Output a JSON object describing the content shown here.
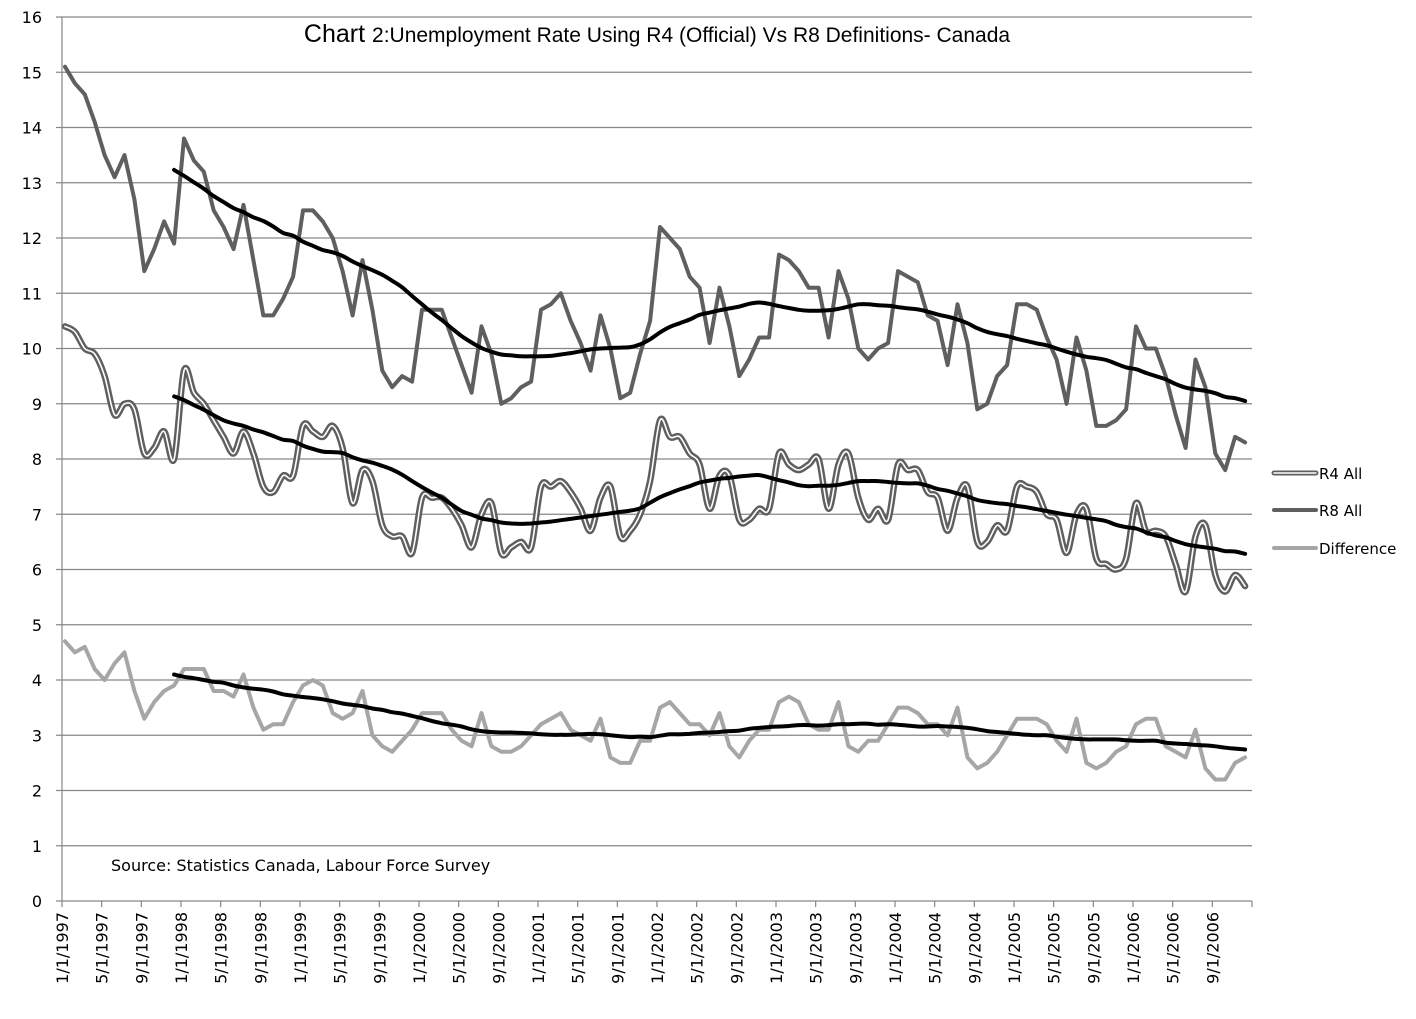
{
  "chart_data": {
    "type": "line",
    "title_prefix": "Chart ",
    "title_main": "2:Unemployment Rate Using R4 (Official) Vs R8 Definitions- Canada",
    "title": "Chart 2:Unemployment Rate Using R4 (Official) Vs R8 Definitions- Canada",
    "xlabel": "",
    "ylabel": "",
    "ylim": [
      0,
      16
    ],
    "yticks": [
      "0",
      "1",
      "2",
      "3",
      "4",
      "5",
      "6",
      "7",
      "8",
      "9",
      "10",
      "11",
      "12",
      "13",
      "14",
      "15",
      "16"
    ],
    "grid": true,
    "legend_position": "right",
    "annotation": "Source: Statistics Canada, Labour Force Survey",
    "x_tick_labels": [
      "1/1/1997",
      "5/1/1997",
      "9/1/1997",
      "1/1/1998",
      "5/1/1998",
      "9/1/1998",
      "1/1/1999",
      "5/1/1999",
      "9/1/1999",
      "1/1/2000",
      "5/1/2000",
      "9/1/2000",
      "1/1/2001",
      "5/1/2001",
      "9/1/2001",
      "1/1/2002",
      "5/1/2002",
      "9/1/2002",
      "1/1/2003",
      "5/1/2003",
      "9/1/2003",
      "1/1/2004",
      "5/1/2004",
      "9/1/2004",
      "1/1/2005",
      "5/1/2005",
      "9/1/2005",
      "1/1/2006",
      "5/1/2006",
      "9/1/2006"
    ],
    "x_start": "1/1/1997",
    "x_frequency": "monthly",
    "n_points": 120,
    "moving_average_period": 12,
    "series": [
      {
        "name": "R4 All",
        "style": "double",
        "color": "#5f5f5f",
        "values": [
          10.4,
          10.3,
          10.0,
          9.9,
          9.5,
          8.8,
          9.0,
          8.9,
          8.1,
          8.2,
          8.5,
          8.0,
          9.6,
          9.2,
          9.0,
          8.7,
          8.4,
          8.1,
          8.5,
          8.1,
          7.5,
          7.4,
          7.7,
          7.7,
          8.6,
          8.5,
          8.4,
          8.6,
          8.2,
          7.2,
          7.8,
          7.6,
          6.8,
          6.6,
          6.6,
          6.3,
          7.3,
          7.3,
          7.3,
          7.1,
          6.8,
          6.4,
          7.0,
          7.2,
          6.3,
          6.4,
          6.5,
          6.4,
          7.5,
          7.5,
          7.6,
          7.4,
          7.1,
          6.7,
          7.3,
          7.5,
          6.6,
          6.7,
          7.0,
          7.6,
          8.7,
          8.4,
          8.4,
          8.1,
          7.9,
          7.1,
          7.7,
          7.7,
          6.9,
          6.9,
          7.1,
          7.1,
          8.1,
          7.9,
          7.8,
          7.9,
          8.0,
          7.1,
          7.9,
          8.1,
          7.3,
          6.9,
          7.1,
          6.9,
          7.9,
          7.8,
          7.8,
          7.4,
          7.3,
          6.7,
          7.3,
          7.5,
          6.5,
          6.5,
          6.8,
          6.7,
          7.5,
          7.5,
          7.4,
          7.0,
          6.9,
          6.3,
          7.0,
          7.1,
          6.2,
          6.1,
          6.0,
          6.2,
          7.2,
          6.7,
          6.7,
          6.6,
          6.1,
          5.6,
          6.6,
          6.8,
          5.9,
          5.6,
          5.9,
          5.7
        ]
      },
      {
        "name": "R8 All",
        "style": "solid",
        "color": "#5f5f5f",
        "values": [
          15.1,
          14.8,
          14.6,
          14.1,
          13.5,
          13.1,
          13.5,
          12.7,
          11.4,
          11.8,
          12.3,
          11.9,
          13.8,
          13.4,
          13.2,
          12.5,
          12.2,
          11.8,
          12.6,
          11.6,
          10.6,
          10.6,
          10.9,
          11.3,
          12.5,
          12.5,
          12.3,
          12.0,
          11.4,
          10.6,
          11.6,
          10.7,
          9.6,
          9.3,
          9.5,
          9.4,
          10.7,
          10.7,
          10.7,
          10.2,
          9.7,
          9.2,
          10.4,
          9.9,
          9.0,
          9.1,
          9.3,
          9.4,
          10.7,
          10.8,
          11.0,
          10.5,
          10.1,
          9.6,
          10.6,
          10.0,
          9.1,
          9.2,
          9.9,
          10.5,
          12.2,
          12.0,
          11.8,
          11.3,
          11.1,
          10.1,
          11.1,
          10.4,
          9.5,
          9.8,
          10.2,
          10.2,
          11.7,
          11.6,
          11.4,
          11.1,
          11.1,
          10.2,
          11.4,
          10.9,
          10.0,
          9.8,
          10.0,
          10.1,
          11.4,
          11.3,
          11.2,
          10.6,
          10.5,
          9.7,
          10.8,
          10.1,
          8.9,
          9.0,
          9.5,
          9.7,
          10.8,
          10.8,
          10.7,
          10.2,
          9.8,
          9.0,
          10.2,
          9.6,
          8.6,
          8.6,
          8.7,
          8.9,
          10.4,
          10.0,
          10.0,
          9.5,
          8.8,
          8.2,
          9.8,
          9.3,
          8.1,
          7.8,
          8.4,
          8.3
        ]
      },
      {
        "name": "Difference",
        "style": "solid",
        "color": "#a6a6a6",
        "values": [
          4.7,
          4.5,
          4.6,
          4.2,
          4.0,
          4.3,
          4.5,
          3.8,
          3.3,
          3.6,
          3.8,
          3.9,
          4.2,
          4.2,
          4.2,
          3.8,
          3.8,
          3.7,
          4.1,
          3.5,
          3.1,
          3.2,
          3.2,
          3.6,
          3.9,
          4.0,
          3.9,
          3.4,
          3.3,
          3.4,
          3.8,
          3.0,
          2.8,
          2.7,
          2.9,
          3.1,
          3.4,
          3.4,
          3.4,
          3.1,
          2.9,
          2.8,
          3.4,
          2.8,
          2.7,
          2.7,
          2.8,
          3.0,
          3.2,
          3.3,
          3.4,
          3.1,
          3.0,
          2.9,
          3.3,
          2.6,
          2.5,
          2.5,
          2.9,
          2.9,
          3.5,
          3.6,
          3.4,
          3.2,
          3.2,
          3.0,
          3.4,
          2.8,
          2.6,
          2.9,
          3.1,
          3.1,
          3.6,
          3.7,
          3.6,
          3.2,
          3.1,
          3.1,
          3.6,
          2.8,
          2.7,
          2.9,
          2.9,
          3.2,
          3.5,
          3.5,
          3.4,
          3.2,
          3.2,
          3.0,
          3.5,
          2.6,
          2.4,
          2.5,
          2.7,
          3.0,
          3.3,
          3.3,
          3.3,
          3.2,
          2.9,
          2.7,
          3.3,
          2.5,
          2.4,
          2.5,
          2.7,
          2.8,
          3.2,
          3.3,
          3.3,
          2.8,
          2.7,
          2.6,
          3.1,
          2.4,
          2.2,
          2.2,
          2.5,
          2.6
        ]
      }
    ],
    "trendlines": [
      {
        "of": "R4 All",
        "type": "12-month moving average",
        "color": "#000000"
      },
      {
        "of": "R8 All",
        "type": "12-month moving average",
        "color": "#000000"
      },
      {
        "of": "Difference",
        "type": "12-month moving average",
        "color": "#000000"
      }
    ]
  },
  "legend": [
    {
      "label": "R4 All"
    },
    {
      "label": "R8 All"
    },
    {
      "label": "Difference"
    }
  ]
}
